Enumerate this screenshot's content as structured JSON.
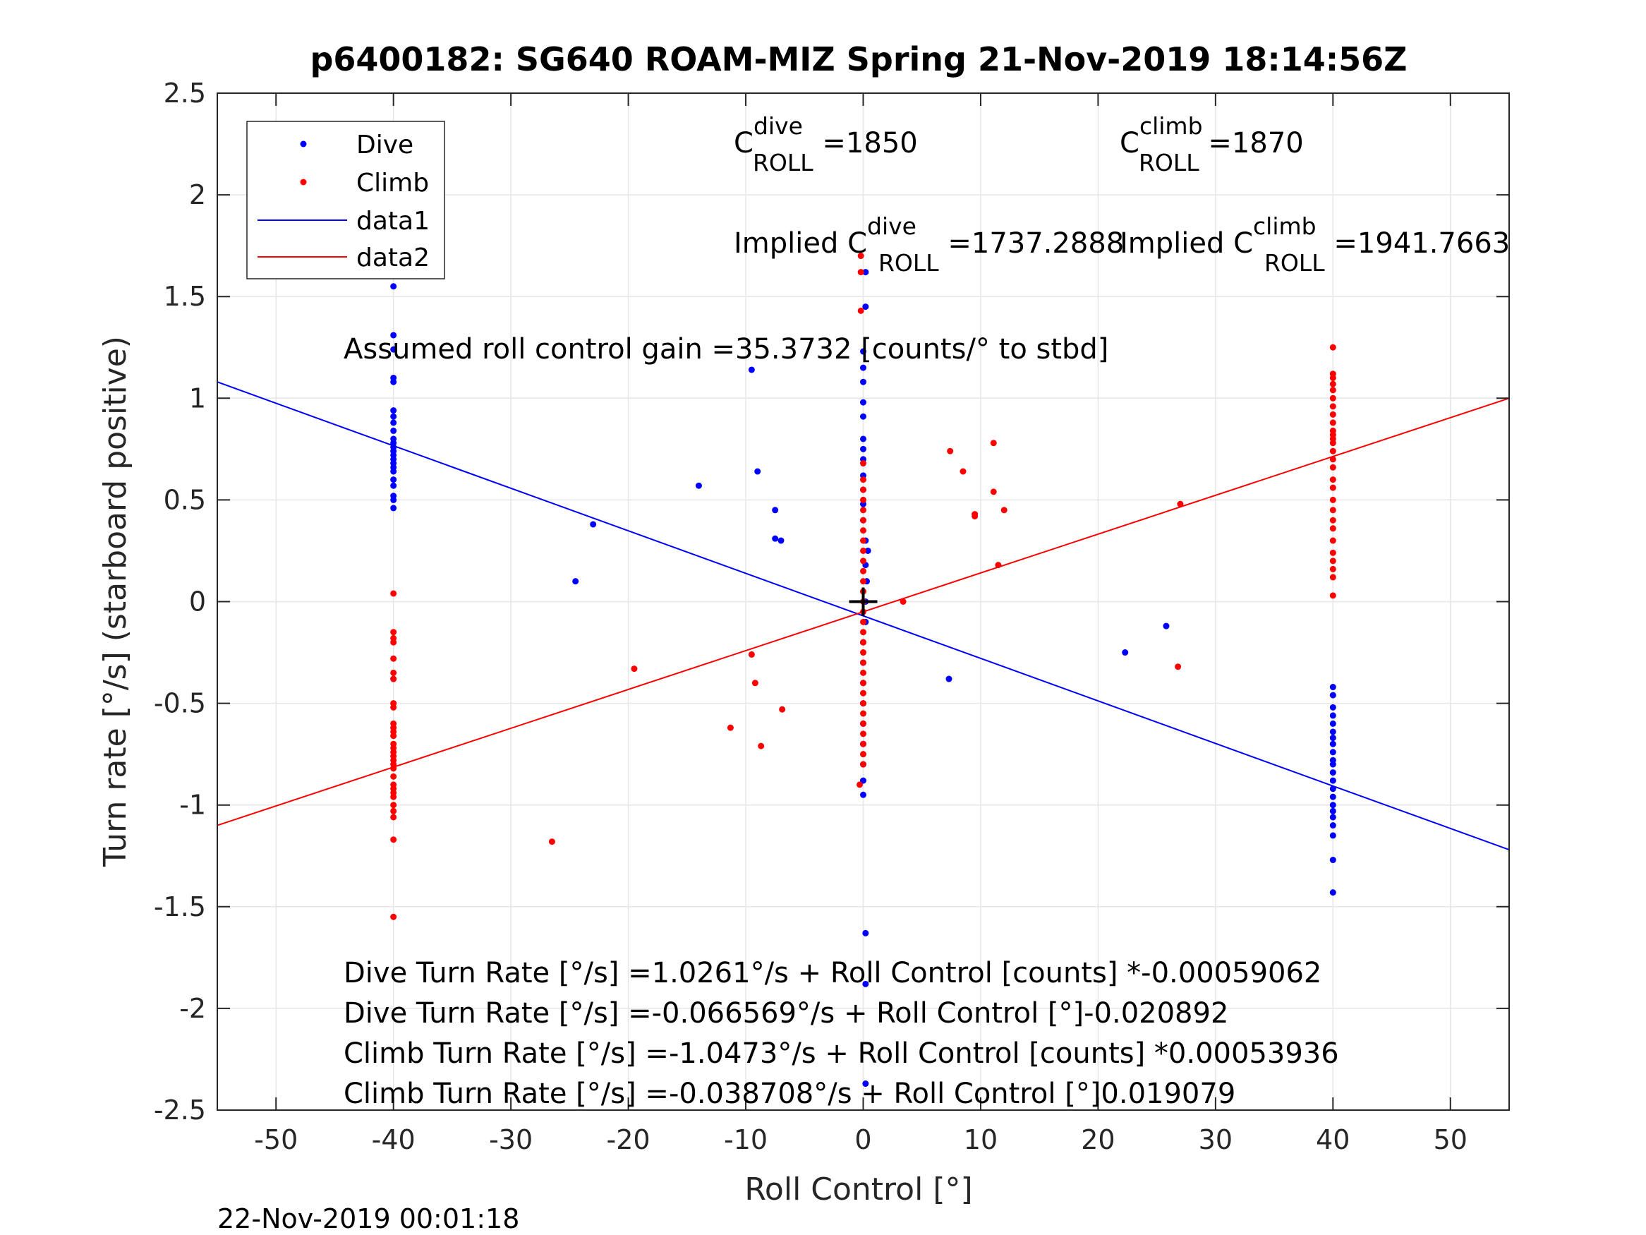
{
  "chart_data": {
    "type": "scatter",
    "title": "p6400182: SG640 ROAM-MIZ Spring 21-Nov-2019 18:14:56Z",
    "xlabel": "Roll Control [°]",
    "ylabel": "Turn rate [°/s] (starboard positive)",
    "xlim": [
      -55,
      55
    ],
    "ylim": [
      -2.5,
      2.5
    ],
    "xticks": [
      -50,
      -40,
      -30,
      -20,
      -10,
      0,
      10,
      20,
      30,
      40,
      50
    ],
    "xtick_labels": [
      "-50",
      "-40",
      "-30",
      "-20",
      "-10",
      "0",
      "10",
      "20",
      "30",
      "40",
      "50"
    ],
    "yticks": [
      -2.5,
      -2,
      -1.5,
      -1,
      -0.5,
      0,
      0.5,
      1,
      1.5,
      2,
      2.5
    ],
    "ytick_labels": [
      "-2.5",
      "-2",
      "-1.5",
      "-1",
      "-0.5",
      "0",
      "0.5",
      "1",
      "1.5",
      "2",
      "2.5"
    ],
    "grid": true,
    "legend_position": "top-left",
    "series": [
      {
        "name": "Dive",
        "kind": "points",
        "color": "#0000ff",
        "points": [
          [
            -40,
            1.82
          ],
          [
            -40,
            1.55
          ],
          [
            -40,
            1.31
          ],
          [
            -40,
            1.24
          ],
          [
            -40,
            1.1
          ],
          [
            -40,
            1.08
          ],
          [
            -40,
            0.94
          ],
          [
            -40,
            0.91
          ],
          [
            -40,
            0.88
          ],
          [
            -40,
            0.84
          ],
          [
            -40,
            0.8
          ],
          [
            -40,
            0.78
          ],
          [
            -40,
            0.76
          ],
          [
            -40,
            0.74
          ],
          [
            -40,
            0.72
          ],
          [
            -40,
            0.7
          ],
          [
            -40,
            0.68
          ],
          [
            -40,
            0.66
          ],
          [
            -40,
            0.64
          ],
          [
            -40,
            0.6
          ],
          [
            -40,
            0.57
          ],
          [
            -40,
            0.52
          ],
          [
            -40,
            0.5
          ],
          [
            -40,
            0.46
          ],
          [
            -40,
            -0.38
          ],
          [
            -24.5,
            0.1
          ],
          [
            -23,
            0.38
          ],
          [
            -14,
            0.57
          ],
          [
            -9.5,
            1.14
          ],
          [
            -9,
            0.64
          ],
          [
            -7.5,
            0.45
          ],
          [
            -7.5,
            0.31
          ],
          [
            -7,
            0.3
          ],
          [
            0.2,
            1.62
          ],
          [
            0.2,
            1.45
          ],
          [
            0,
            1.23
          ],
          [
            0,
            1.15
          ],
          [
            0,
            1.08
          ],
          [
            0,
            0.98
          ],
          [
            0,
            0.91
          ],
          [
            0,
            0.8
          ],
          [
            0,
            0.75
          ],
          [
            0,
            0.7
          ],
          [
            0,
            0.62
          ],
          [
            0,
            0.55
          ],
          [
            0,
            0.48
          ],
          [
            0,
            0.4
          ],
          [
            0.2,
            0.3
          ],
          [
            0.4,
            0.25
          ],
          [
            0.2,
            0.18
          ],
          [
            0.3,
            0.1
          ],
          [
            0.2,
            0.0
          ],
          [
            0.2,
            -0.1
          ],
          [
            0,
            -0.2
          ],
          [
            0,
            -0.3
          ],
          [
            0,
            -0.4
          ],
          [
            0,
            -0.5
          ],
          [
            0,
            -0.6
          ],
          [
            0,
            -0.7
          ],
          [
            0,
            -0.8
          ],
          [
            0,
            -0.88
          ],
          [
            0,
            -0.95
          ],
          [
            0.2,
            -1.63
          ],
          [
            0.2,
            -1.88
          ],
          [
            0.2,
            -2.37
          ],
          [
            7.3,
            -0.38
          ],
          [
            22.3,
            -0.25
          ],
          [
            25.8,
            -0.12
          ],
          [
            40,
            -0.42
          ],
          [
            40,
            -0.46
          ],
          [
            40,
            -0.52
          ],
          [
            40,
            -0.56
          ],
          [
            40,
            -0.6
          ],
          [
            40,
            -0.64
          ],
          [
            40,
            -0.67
          ],
          [
            40,
            -0.7
          ],
          [
            40,
            -0.74
          ],
          [
            40,
            -0.78
          ],
          [
            40,
            -0.8
          ],
          [
            40,
            -0.84
          ],
          [
            40,
            -0.88
          ],
          [
            40,
            -0.92
          ],
          [
            40,
            -0.96
          ],
          [
            40,
            -1.0
          ],
          [
            40,
            -1.03
          ],
          [
            40,
            -1.06
          ],
          [
            40,
            -1.1
          ],
          [
            40,
            -1.15
          ],
          [
            40,
            -1.27
          ],
          [
            40,
            -1.43
          ]
        ]
      },
      {
        "name": "Climb",
        "kind": "points",
        "color": "#ff0000",
        "points": [
          [
            -40,
            0.04
          ],
          [
            -40,
            -0.15
          ],
          [
            -40,
            -0.18
          ],
          [
            -40,
            -0.2
          ],
          [
            -40,
            -0.28
          ],
          [
            -40,
            -0.35
          ],
          [
            -40,
            -0.38
          ],
          [
            -40,
            -0.5
          ],
          [
            -40,
            -0.52
          ],
          [
            -40,
            -0.6
          ],
          [
            -40,
            -0.62
          ],
          [
            -40,
            -0.64
          ],
          [
            -40,
            -0.66
          ],
          [
            -40,
            -0.7
          ],
          [
            -40,
            -0.72
          ],
          [
            -40,
            -0.74
          ],
          [
            -40,
            -0.76
          ],
          [
            -40,
            -0.78
          ],
          [
            -40,
            -0.8
          ],
          [
            -40,
            -0.82
          ],
          [
            -40,
            -0.86
          ],
          [
            -40,
            -0.9
          ],
          [
            -40,
            -0.92
          ],
          [
            -40,
            -0.94
          ],
          [
            -40,
            -0.96
          ],
          [
            -40,
            -1.0
          ],
          [
            -40,
            -1.03
          ],
          [
            -40,
            -1.06
          ],
          [
            -40,
            -1.17
          ],
          [
            -40,
            -1.55
          ],
          [
            -26.5,
            -1.18
          ],
          [
            -19.5,
            -0.33
          ],
          [
            -11.3,
            -0.62
          ],
          [
            -9.5,
            -0.26
          ],
          [
            -9.2,
            -0.4
          ],
          [
            -8.7,
            -0.71
          ],
          [
            -6.9,
            -0.53
          ],
          [
            -0.2,
            1.7
          ],
          [
            -0.2,
            1.62
          ],
          [
            -0.2,
            1.43
          ],
          [
            0,
            0.68
          ],
          [
            0,
            0.6
          ],
          [
            0,
            0.55
          ],
          [
            0,
            0.5
          ],
          [
            0,
            0.45
          ],
          [
            0,
            0.4
          ],
          [
            0,
            0.35
          ],
          [
            0,
            0.3
          ],
          [
            0,
            0.25
          ],
          [
            0,
            0.2
          ],
          [
            0,
            0.15
          ],
          [
            0,
            0.1
          ],
          [
            0,
            0.05
          ],
          [
            0,
            0.0
          ],
          [
            0,
            -0.05
          ],
          [
            0,
            -0.1
          ],
          [
            0,
            -0.15
          ],
          [
            0,
            -0.2
          ],
          [
            0,
            -0.25
          ],
          [
            0,
            -0.3
          ],
          [
            0,
            -0.35
          ],
          [
            0,
            -0.4
          ],
          [
            0,
            -0.45
          ],
          [
            0,
            -0.5
          ],
          [
            0,
            -0.55
          ],
          [
            0,
            -0.6
          ],
          [
            0,
            -0.65
          ],
          [
            0,
            -0.7
          ],
          [
            0,
            -0.75
          ],
          [
            0,
            -0.8
          ],
          [
            -0.3,
            -0.9
          ],
          [
            3.4,
            0.0
          ],
          [
            7.4,
            0.74
          ],
          [
            8.5,
            0.64
          ],
          [
            9.5,
            0.43
          ],
          [
            9.5,
            0.42
          ],
          [
            11.1,
            0.78
          ],
          [
            11.1,
            0.54
          ],
          [
            11.5,
            0.18
          ],
          [
            12,
            0.45
          ],
          [
            27,
            0.48
          ],
          [
            26.8,
            -0.32
          ],
          [
            40,
            1.25
          ],
          [
            40,
            1.12
          ],
          [
            40,
            1.1
          ],
          [
            40,
            1.07
          ],
          [
            40,
            1.04
          ],
          [
            40,
            1.0
          ],
          [
            40,
            0.96
          ],
          [
            40,
            0.92
          ],
          [
            40,
            0.88
          ],
          [
            40,
            0.84
          ],
          [
            40,
            0.82
          ],
          [
            40,
            0.8
          ],
          [
            40,
            0.78
          ],
          [
            40,
            0.74
          ],
          [
            40,
            0.7
          ],
          [
            40,
            0.66
          ],
          [
            40,
            0.6
          ],
          [
            40,
            0.56
          ],
          [
            40,
            0.5
          ],
          [
            40,
            0.45
          ],
          [
            40,
            0.4
          ],
          [
            40,
            0.36
          ],
          [
            40,
            0.3
          ],
          [
            40,
            0.24
          ],
          [
            40,
            0.2
          ],
          [
            40,
            0.16
          ],
          [
            40,
            0.12
          ],
          [
            40,
            0.03
          ]
        ]
      },
      {
        "name": "data1",
        "kind": "line",
        "color": "#0000ff",
        "x": [
          -55,
          55
        ],
        "y": [
          1.08,
          -1.22
        ]
      },
      {
        "name": "data2",
        "kind": "line",
        "color": "#ff0000",
        "x": [
          -55,
          55
        ],
        "y": [
          -1.1,
          1.0
        ]
      }
    ],
    "marker": {
      "x": 0,
      "y": 0,
      "symbol": "+",
      "color": "#000000"
    },
    "annotations": {
      "c_dive": {
        "base": "C",
        "sup": "dive",
        "sub": "ROLL",
        "text": " =1850"
      },
      "c_climb": {
        "base": "C",
        "sup": "climb",
        "sub": "ROLL",
        "text": " =1870"
      },
      "implied_dive": {
        "prefix": "Implied C",
        "sup": "dive",
        "sub": "ROLL",
        "text": " =1737.2888"
      },
      "implied_climb": {
        "prefix": "Implied C",
        "sup": "climb",
        "sub": "ROLL",
        "text": " =1941.7663"
      },
      "gain": "Assumed roll control gain =35.3732 [counts/° to stbd]",
      "fit_lines": [
        "Dive Turn Rate [°/s] =1.0261°/s + Roll Control [counts] *-0.00059062",
        "Dive Turn Rate [°/s] =-0.066569°/s + Roll Control [°]-0.020892",
        "Climb Turn Rate [°/s] =-1.0473°/s + Roll Control [counts] *0.00053936",
        "Climb Turn Rate [°/s] =-0.038708°/s + Roll Control [°]0.019079"
      ]
    }
  },
  "footer": {
    "timestamp": "22-Nov-2019 00:01:18"
  }
}
